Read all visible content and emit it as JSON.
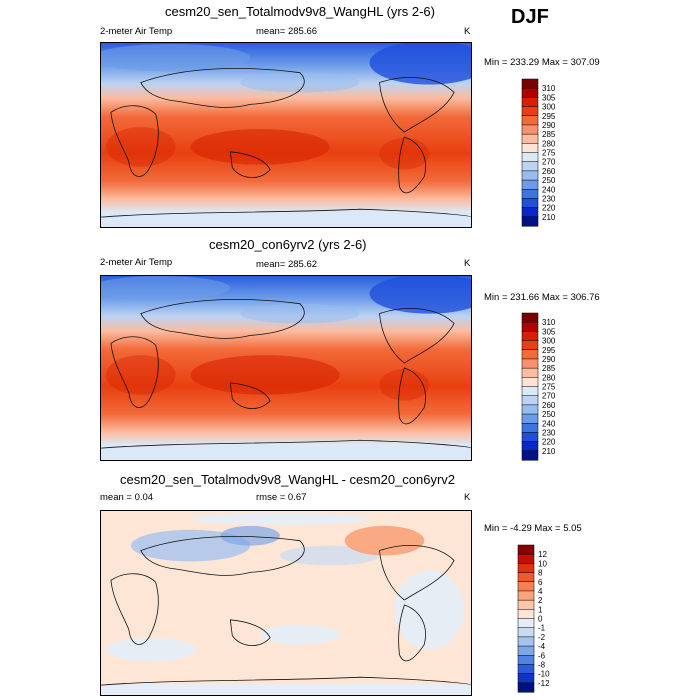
{
  "season": "DJF",
  "panels": [
    {
      "title": "cesm20_sen_Totalmodv9v8_WangHL (yrs 2-6)",
      "left_label": "2-meter Air Temp",
      "center_label": "mean= 285.66",
      "units": "K",
      "minmax": "Min = 233.29 Max = 307.09",
      "colorbar": {
        "labels": [
          "310",
          "305",
          "300",
          "295",
          "290",
          "285",
          "280",
          "275",
          "270",
          "260",
          "250",
          "240",
          "230",
          "220",
          "210"
        ],
        "colors": [
          "#7a0000",
          "#b00000",
          "#d62000",
          "#e84010",
          "#f26a3a",
          "#f99070",
          "#fcbca0",
          "#fde3d3",
          "#dbe8f8",
          "#bcd3f3",
          "#97bcee",
          "#6c9ce8",
          "#3e74e0",
          "#1f4fdc",
          "#0a28c8",
          "#001088"
        ]
      }
    },
    {
      "title": "cesm20_con6yrv2 (yrs 2-6)",
      "left_label": "2-meter Air Temp",
      "center_label": "mean= 285.62",
      "units": "K",
      "minmax": "Min = 231.66 Max = 306.76",
      "colorbar": {
        "labels": [
          "310",
          "305",
          "300",
          "295",
          "290",
          "285",
          "280",
          "275",
          "270",
          "260",
          "250",
          "240",
          "230",
          "220",
          "210"
        ],
        "colors": [
          "#7a0000",
          "#b00000",
          "#d62000",
          "#e84010",
          "#f26a3a",
          "#f99070",
          "#fcbca0",
          "#fde3d3",
          "#dbe8f8",
          "#bcd3f3",
          "#97bcee",
          "#6c9ce8",
          "#3e74e0",
          "#1f4fdc",
          "#0a28c8",
          "#001088"
        ]
      }
    },
    {
      "title": "cesm20_sen_Totalmodv9v8_WangHL - cesm20_con6yrv2",
      "left_label": "mean =   0.04",
      "center_label": "rmse =   0.67",
      "units": "K",
      "minmax": "Min =  -4.29 Max =   5.05",
      "colorbar": {
        "labels": [
          "12",
          "10",
          "8",
          "6",
          "4",
          "2",
          "1",
          "0",
          "-1",
          "-2",
          "-4",
          "-6",
          "-8",
          "-10",
          "-12"
        ],
        "colors": [
          "#8a0000",
          "#c01000",
          "#e03010",
          "#ee5a2a",
          "#f58050",
          "#f9a37a",
          "#fcc7a8",
          "#fde6d6",
          "#e4edf8",
          "#c8dbf3",
          "#a5c3ee",
          "#7ea6e8",
          "#5283e2",
          "#2a5cd8",
          "#0e34c4",
          "#001080"
        ]
      }
    }
  ]
}
